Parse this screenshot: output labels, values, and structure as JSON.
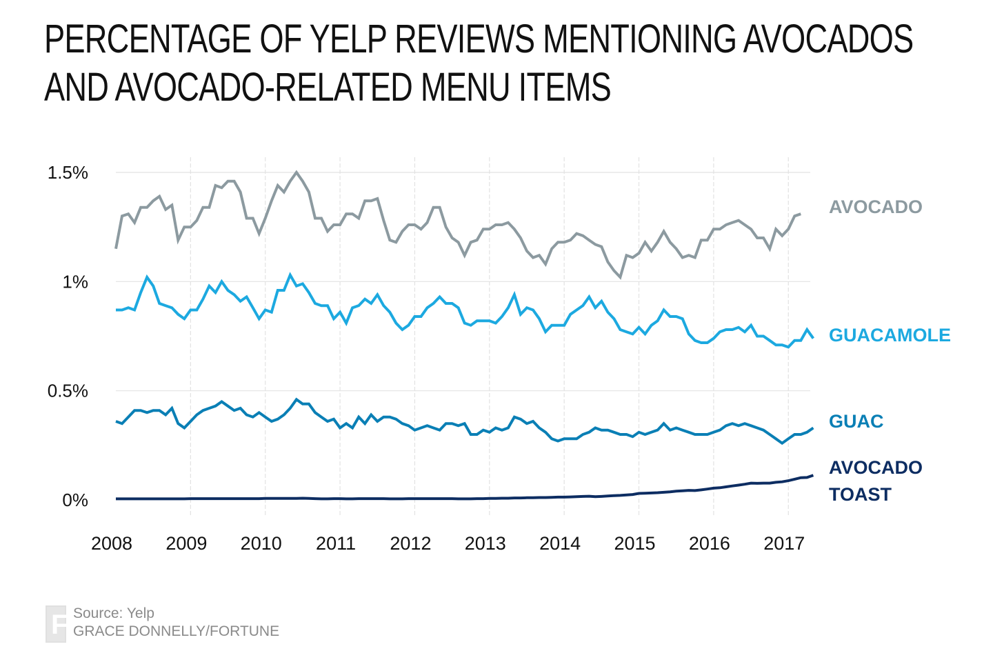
{
  "chart_data": {
    "type": "line",
    "title": "PERCENTAGE OF YELP REVIEWS MENTIONING AVOCADOS AND AVOCADO-RELATED MENU ITEMS",
    "title_lines": [
      "PERCENTAGE OF YELP REVIEWS MENTIONING AVOCADOS",
      "AND AVOCADO-RELATED MENU ITEMS"
    ],
    "xlabel": "",
    "ylabel": "",
    "x_start": "2008-01",
    "x_frequency": "monthly",
    "x_ticks": [
      "2008",
      "2009",
      "2010",
      "2011",
      "2012",
      "2013",
      "2014",
      "2015",
      "2016",
      "2017"
    ],
    "y_ticks": [
      {
        "value": 0,
        "label": "0%"
      },
      {
        "value": 0.5,
        "label": "0.5%"
      },
      {
        "value": 1,
        "label": "1%"
      },
      {
        "value": 1.5,
        "label": "1.5%"
      }
    ],
    "ylim": [
      0,
      1.5
    ],
    "xlim": [
      "2008-01",
      "2017-04"
    ],
    "grid": true,
    "legend": "direct labels at right end of each line",
    "series": [
      {
        "name": "AVOCADO",
        "label_lines": [
          "AVOCADO"
        ],
        "color": "#8c9aa0",
        "values": [
          1.15,
          1.3,
          1.31,
          1.27,
          1.34,
          1.34,
          1.37,
          1.39,
          1.33,
          1.35,
          1.19,
          1.25,
          1.25,
          1.28,
          1.34,
          1.34,
          1.44,
          1.43,
          1.46,
          1.46,
          1.41,
          1.29,
          1.29,
          1.22,
          1.29,
          1.37,
          1.44,
          1.41,
          1.46,
          1.5,
          1.46,
          1.41,
          1.29,
          1.29,
          1.23,
          1.26,
          1.26,
          1.31,
          1.31,
          1.29,
          1.37,
          1.37,
          1.38,
          1.28,
          1.19,
          1.18,
          1.23,
          1.26,
          1.26,
          1.24,
          1.27,
          1.34,
          1.34,
          1.25,
          1.2,
          1.18,
          1.12,
          1.18,
          1.19,
          1.24,
          1.24,
          1.26,
          1.26,
          1.27,
          1.24,
          1.2,
          1.14,
          1.11,
          1.12,
          1.08,
          1.15,
          1.18,
          1.18,
          1.19,
          1.22,
          1.21,
          1.19,
          1.17,
          1.16,
          1.09,
          1.05,
          1.02,
          1.12,
          1.11,
          1.13,
          1.18,
          1.14,
          1.18,
          1.23,
          1.18,
          1.15,
          1.11,
          1.12,
          1.11,
          1.19,
          1.19,
          1.24,
          1.24,
          1.26,
          1.27,
          1.28,
          1.26,
          1.24,
          1.2,
          1.2,
          1.15,
          1.24,
          1.21,
          1.24,
          1.3,
          1.31
        ]
      },
      {
        "name": "GUACAMOLE",
        "label_lines": [
          "GUACAMOLE"
        ],
        "color": "#1ca9e0",
        "values": [
          0.87,
          0.87,
          0.88,
          0.87,
          0.95,
          1.02,
          0.98,
          0.9,
          0.89,
          0.88,
          0.85,
          0.83,
          0.87,
          0.87,
          0.92,
          0.98,
          0.95,
          1.0,
          0.96,
          0.94,
          0.91,
          0.93,
          0.88,
          0.83,
          0.87,
          0.86,
          0.96,
          0.96,
          1.03,
          0.98,
          0.99,
          0.95,
          0.9,
          0.89,
          0.89,
          0.83,
          0.86,
          0.81,
          0.88,
          0.89,
          0.92,
          0.9,
          0.94,
          0.89,
          0.86,
          0.81,
          0.78,
          0.8,
          0.84,
          0.84,
          0.88,
          0.9,
          0.93,
          0.9,
          0.9,
          0.88,
          0.81,
          0.8,
          0.82,
          0.82,
          0.82,
          0.81,
          0.84,
          0.88,
          0.94,
          0.85,
          0.88,
          0.87,
          0.83,
          0.77,
          0.8,
          0.8,
          0.8,
          0.85,
          0.87,
          0.89,
          0.93,
          0.88,
          0.91,
          0.86,
          0.83,
          0.78,
          0.77,
          0.76,
          0.79,
          0.76,
          0.8,
          0.82,
          0.87,
          0.84,
          0.84,
          0.83,
          0.76,
          0.73,
          0.72,
          0.72,
          0.74,
          0.77,
          0.78,
          0.78,
          0.79,
          0.77,
          0.8,
          0.75,
          0.75,
          0.73,
          0.71,
          0.71,
          0.7,
          0.73,
          0.73,
          0.78,
          0.74
        ]
      },
      {
        "name": "GUAC",
        "label_lines": [
          "GUAC"
        ],
        "color": "#0a7fb5",
        "values": [
          0.36,
          0.35,
          0.38,
          0.41,
          0.41,
          0.4,
          0.41,
          0.41,
          0.39,
          0.42,
          0.35,
          0.33,
          0.36,
          0.39,
          0.41,
          0.42,
          0.43,
          0.45,
          0.43,
          0.41,
          0.42,
          0.39,
          0.38,
          0.4,
          0.38,
          0.36,
          0.37,
          0.39,
          0.42,
          0.46,
          0.44,
          0.44,
          0.4,
          0.38,
          0.36,
          0.37,
          0.33,
          0.35,
          0.33,
          0.38,
          0.35,
          0.39,
          0.36,
          0.38,
          0.38,
          0.37,
          0.35,
          0.34,
          0.32,
          0.33,
          0.34,
          0.33,
          0.32,
          0.35,
          0.35,
          0.34,
          0.35,
          0.3,
          0.3,
          0.32,
          0.31,
          0.33,
          0.32,
          0.33,
          0.38,
          0.37,
          0.35,
          0.36,
          0.33,
          0.31,
          0.28,
          0.27,
          0.28,
          0.28,
          0.28,
          0.3,
          0.31,
          0.33,
          0.32,
          0.32,
          0.31,
          0.3,
          0.3,
          0.29,
          0.31,
          0.3,
          0.31,
          0.32,
          0.35,
          0.32,
          0.33,
          0.32,
          0.31,
          0.3,
          0.3,
          0.3,
          0.31,
          0.32,
          0.34,
          0.35,
          0.34,
          0.35,
          0.34,
          0.33,
          0.32,
          0.3,
          0.28,
          0.26,
          0.28,
          0.3,
          0.3,
          0.31,
          0.33
        ]
      },
      {
        "name": "AVOCADO TOAST",
        "label_lines": [
          "AVOCADO",
          "TOAST"
        ],
        "color": "#0d2d62",
        "values": [
          0.005,
          0.005,
          0.005,
          0.005,
          0.005,
          0.005,
          0.005,
          0.005,
          0.005,
          0.005,
          0.005,
          0.005,
          0.006,
          0.006,
          0.006,
          0.006,
          0.006,
          0.006,
          0.006,
          0.006,
          0.006,
          0.006,
          0.006,
          0.006,
          0.007,
          0.007,
          0.007,
          0.007,
          0.007,
          0.007,
          0.008,
          0.007,
          0.006,
          0.005,
          0.005,
          0.006,
          0.006,
          0.005,
          0.005,
          0.006,
          0.006,
          0.006,
          0.006,
          0.006,
          0.005,
          0.005,
          0.005,
          0.006,
          0.006,
          0.006,
          0.006,
          0.006,
          0.006,
          0.006,
          0.006,
          0.005,
          0.005,
          0.005,
          0.006,
          0.006,
          0.007,
          0.007,
          0.008,
          0.008,
          0.009,
          0.009,
          0.01,
          0.01,
          0.011,
          0.011,
          0.012,
          0.013,
          0.013,
          0.014,
          0.015,
          0.016,
          0.017,
          0.015,
          0.016,
          0.018,
          0.02,
          0.021,
          0.023,
          0.025,
          0.03,
          0.031,
          0.032,
          0.033,
          0.035,
          0.037,
          0.04,
          0.042,
          0.044,
          0.043,
          0.046,
          0.05,
          0.054,
          0.056,
          0.06,
          0.064,
          0.068,
          0.072,
          0.077,
          0.076,
          0.077,
          0.077,
          0.081,
          0.083,
          0.088,
          0.095,
          0.102,
          0.103,
          0.113
        ]
      }
    ]
  },
  "footer": {
    "logo_letter": "F",
    "source": "Source: Yelp",
    "credit": "GRACE DONNELLY/FORTUNE"
  }
}
